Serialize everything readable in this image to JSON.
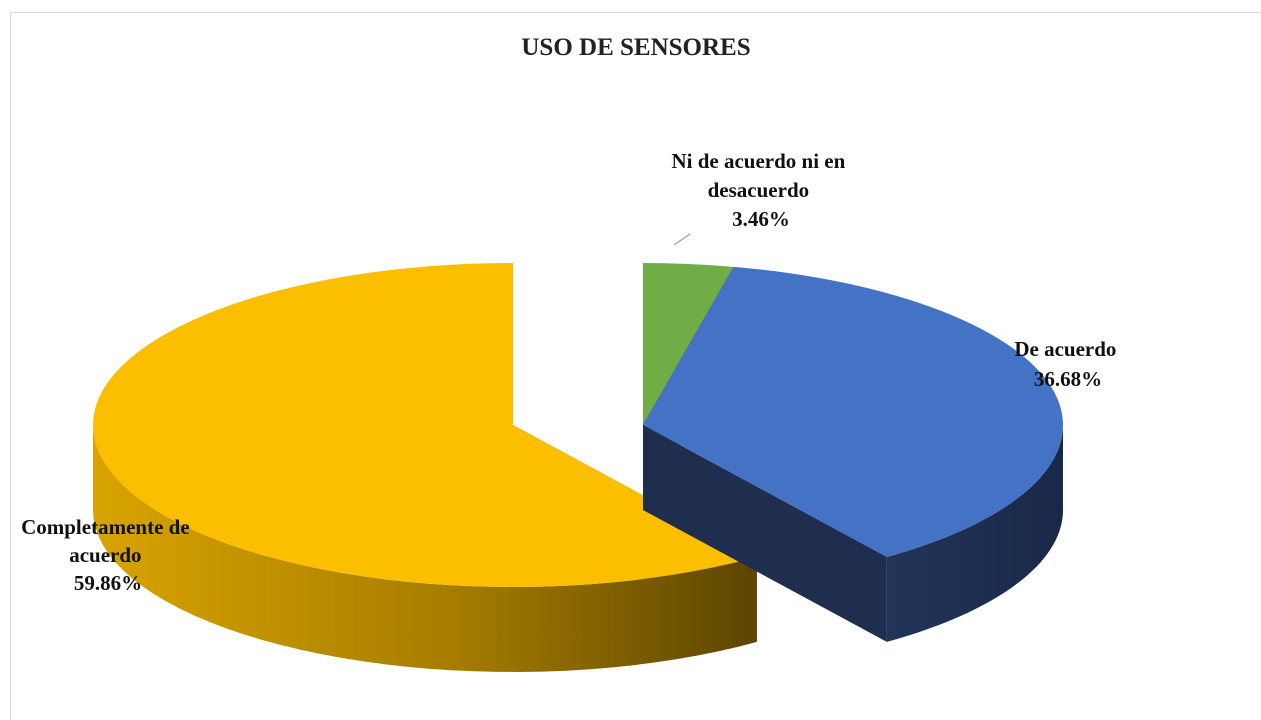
{
  "chart_data": {
    "type": "pie",
    "title": "USO DE SENSORES",
    "slices": [
      {
        "label_lines": [
          "Ni de acuerdo ni en",
          "desacuerdo"
        ],
        "value_label": "3.46%",
        "value": 3.46,
        "color": "#70ad47",
        "side_color": "#385723"
      },
      {
        "label_lines": [
          "De acuerdo"
        ],
        "value_label": "36.68%",
        "value": 36.68,
        "color": "#4472c4",
        "side_color": "#1f2e4f"
      },
      {
        "label_lines": [
          "Completamente de",
          "acuerdo"
        ],
        "value_label": "59.86%",
        "value": 59.86,
        "color": "#fbbf00",
        "side_color": "#8a6a00"
      }
    ],
    "legend": "none",
    "style": "3d-exploded"
  }
}
